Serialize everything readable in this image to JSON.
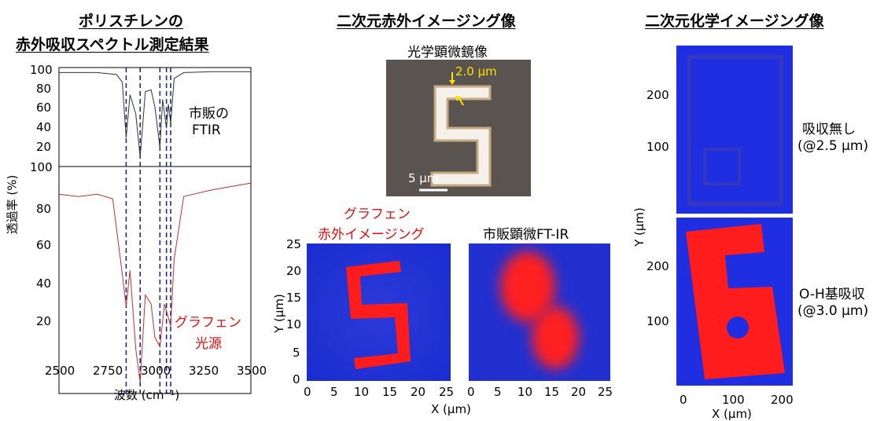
{
  "left": {
    "title_line1": "ポリスチレンの",
    "title_line2": "赤外吸収スペクトル測定結果",
    "top_label_line1": "市販の",
    "top_label_line2": "FTIR",
    "bottom_label_line1": "グラフェン",
    "bottom_label_line2": "光源",
    "ylabel": "透過率 (%)",
    "xlabel": "波数 (cm⁻¹)",
    "top_yticks": [
      "100",
      "80",
      "60",
      "40",
      "20"
    ],
    "bottom_yticks": [
      "100",
      "80",
      "60",
      "40",
      "20"
    ],
    "xticks": [
      "2500",
      "2750",
      "3000",
      "3250",
      "3500"
    ]
  },
  "middle": {
    "title": "二次元赤外イメージング像",
    "micro_label": "光学顕微鏡像",
    "micro_dim": "2.0 μm",
    "micro_scale": "5 μm",
    "graphene_label_line1": "グラフェン",
    "graphene_label_line2": "赤外イメージング",
    "ftir_label": "市販顕微FT-IR",
    "yticks": [
      "25",
      "20",
      "15",
      "10",
      "5",
      "0"
    ],
    "xticks": [
      "0",
      "5",
      "10",
      "15",
      "20",
      "25"
    ],
    "ylabel": "Y (μm)",
    "xlabel": "X (μm)"
  },
  "right": {
    "title": "二次元化学イメージング像",
    "label1_line1": "吸収無し",
    "label1_line2": "(@2.5 μm)",
    "label2_line1": "O-H基吸収",
    "label2_line2": "(@3.0 μm)",
    "yticks": [
      "200",
      "100"
    ],
    "xticks": [
      "0",
      "100",
      "200"
    ],
    "ylabel": "Y (μm)",
    "xlabel": "X (μm)"
  },
  "chart_data": {
    "type": "line",
    "x_range": [
      2500,
      3500
    ],
    "y_range": [
      0,
      100
    ],
    "dashed_lines_x": [
      2850,
      2923,
      3026,
      3060,
      3082
    ],
    "series": [
      {
        "name": "市販のFTIR",
        "color": "#333333",
        "x": [
          2500,
          2700,
          2800,
          2830,
          2850,
          2870,
          2900,
          2923,
          2950,
          2980,
          3000,
          3026,
          3040,
          3060,
          3070,
          3082,
          3100,
          3150,
          3300,
          3500
        ],
        "y": [
          98,
          98,
          96,
          88,
          30,
          75,
          55,
          10,
          78,
          80,
          62,
          20,
          70,
          40,
          65,
          45,
          92,
          98,
          99,
          99
        ]
      },
      {
        "name": "グラフェン光源",
        "color": "#c03030",
        "x": [
          2500,
          2600,
          2700,
          2780,
          2820,
          2850,
          2870,
          2900,
          2923,
          2950,
          2980,
          3000,
          3026,
          3050,
          3082,
          3100,
          3150,
          3300,
          3500
        ],
        "y": [
          89,
          88,
          89,
          87,
          60,
          39,
          55,
          20,
          5,
          44,
          40,
          25,
          21,
          40,
          30,
          60,
          88,
          91,
          94
        ]
      }
    ]
  }
}
